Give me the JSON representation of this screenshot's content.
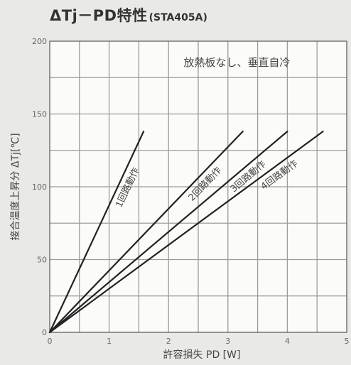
{
  "chart_data": {
    "type": "line",
    "title": "ΔTj－PD特性",
    "subtitle": "(STA405A)",
    "xlabel": "許容損失 PD [W]",
    "ylabel": "接合温度上昇分 ΔTj[℃]",
    "xlim": [
      0,
      5
    ],
    "ylim": [
      0,
      200
    ],
    "x_ticks": [
      "0",
      "1",
      "2",
      "3",
      "4",
      "5"
    ],
    "y_ticks": [
      "0",
      "50",
      "100",
      "150",
      "200"
    ],
    "grid": true,
    "annotation": "放熱板なし、垂直自冷",
    "series": [
      {
        "name": "1回路動作",
        "x": [
          0,
          1.58
        ],
        "y": [
          0,
          138
        ]
      },
      {
        "name": "2回路動作",
        "x": [
          0,
          3.25
        ],
        "y": [
          0,
          138
        ]
      },
      {
        "name": "3回路動作",
        "x": [
          0,
          4.0
        ],
        "y": [
          0,
          138
        ]
      },
      {
        "name": "4回路動作",
        "x": [
          0,
          4.6
        ],
        "y": [
          0,
          138
        ]
      }
    ]
  }
}
